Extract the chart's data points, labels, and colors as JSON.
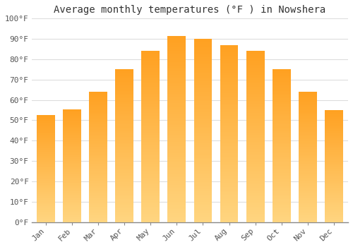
{
  "title": "Average monthly temperatures (°F ) in Nowshera",
  "months": [
    "Jan",
    "Feb",
    "Mar",
    "Apr",
    "May",
    "Jun",
    "Jul",
    "Aug",
    "Sep",
    "Oct",
    "Nov",
    "Dec"
  ],
  "values": [
    52.5,
    55.5,
    64,
    75,
    84,
    91.5,
    90,
    87,
    84,
    75,
    64,
    55
  ],
  "bar_color_bottom": "#FFD580",
  "bar_color_top": "#FFA020",
  "ylim": [
    0,
    100
  ],
  "yticks": [
    0,
    10,
    20,
    30,
    40,
    50,
    60,
    70,
    80,
    90,
    100
  ],
  "ytick_labels": [
    "0°F",
    "10°F",
    "20°F",
    "30°F",
    "40°F",
    "50°F",
    "60°F",
    "70°F",
    "80°F",
    "90°F",
    "100°F"
  ],
  "bg_color": "#FFFFFF",
  "grid_color": "#DDDDDD",
  "title_fontsize": 10,
  "tick_fontsize": 8,
  "bar_width": 0.7,
  "n_gradient_steps": 100
}
